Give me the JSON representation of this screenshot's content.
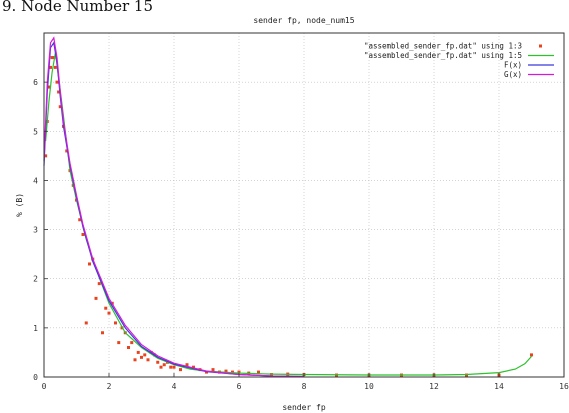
{
  "caption": "9. Node Number 15",
  "chart_data": {
    "type": "line",
    "title": "sender fp, node_num15",
    "xlabel": "sender fp",
    "ylabel": "% (B)",
    "xlim": [
      0,
      16
    ],
    "ylim": [
      0,
      7
    ],
    "xticks": [
      "0",
      "2",
      "4",
      "6",
      "8",
      "10",
      "12",
      "14",
      "16"
    ],
    "yticks": [
      "0",
      "1",
      "2",
      "3",
      "4",
      "5",
      "6"
    ],
    "grid": true,
    "legend_position": "top-right",
    "series": [
      {
        "name": "\"assembled_sender_fp.dat\" using 1:3",
        "kind": "points",
        "color": "#e8431e",
        "x": [
          0.05,
          0.1,
          0.15,
          0.2,
          0.25,
          0.3,
          0.35,
          0.4,
          0.45,
          0.5,
          0.6,
          0.7,
          0.8,
          0.9,
          1.0,
          1.1,
          1.2,
          1.3,
          1.4,
          1.5,
          1.6,
          1.7,
          1.8,
          1.9,
          2.0,
          2.1,
          2.2,
          2.3,
          2.4,
          2.5,
          2.6,
          2.7,
          2.8,
          2.9,
          3.0,
          3.1,
          3.2,
          3.3,
          3.4,
          3.5,
          3.6,
          3.7,
          3.8,
          3.9,
          4.0,
          4.2,
          4.4,
          4.6,
          4.8,
          5.0,
          5.2,
          5.4,
          5.6,
          5.8,
          6.0,
          6.3,
          6.6,
          7.0,
          7.5,
          8.0,
          9.0,
          10.0,
          11.0,
          12.0,
          13.0,
          14.0,
          15.0
        ],
        "y": [
          4.5,
          5.2,
          5.9,
          6.3,
          6.5,
          6.5,
          6.3,
          6.0,
          5.8,
          5.5,
          5.1,
          4.6,
          4.2,
          3.9,
          3.6,
          3.2,
          2.9,
          1.1,
          2.3,
          2.4,
          1.6,
          1.9,
          0.9,
          1.4,
          1.3,
          1.5,
          1.1,
          0.7,
          1.0,
          0.9,
          0.6,
          0.7,
          0.35,
          0.5,
          0.4,
          0.45,
          0.35,
          0.5,
          0.45,
          0.3,
          0.2,
          0.25,
          0.3,
          0.2,
          0.2,
          0.15,
          0.25,
          0.2,
          0.15,
          0.1,
          0.15,
          0.1,
          0.12,
          0.1,
          0.1,
          0.08,
          0.1,
          0.05,
          0.06,
          0.05,
          0.04,
          0.04,
          0.04,
          0.04,
          0.04,
          0.04,
          0.45
        ]
      },
      {
        "name": "\"assembled_sender_fp.dat\" using 1:5",
        "kind": "line",
        "color": "#2ec12e",
        "x": [
          0.05,
          0.15,
          0.25,
          0.35,
          0.45,
          0.6,
          0.8,
          1.0,
          1.3,
          1.6,
          2.0,
          2.5,
          3.0,
          3.5,
          4.0,
          4.5,
          5.0,
          6.0,
          7.0,
          8.0,
          10.0,
          12.0,
          13.0,
          14.0,
          14.5,
          14.8,
          15.0
        ],
        "y": [
          4.8,
          5.6,
          6.2,
          6.6,
          6.1,
          5.3,
          4.2,
          3.6,
          2.8,
          2.2,
          1.5,
          0.9,
          0.6,
          0.38,
          0.25,
          0.16,
          0.12,
          0.08,
          0.06,
          0.05,
          0.04,
          0.04,
          0.05,
          0.09,
          0.16,
          0.27,
          0.42
        ]
      },
      {
        "name": "F(x)",
        "kind": "line",
        "color": "#3a3adb",
        "x": [
          0.0,
          0.1,
          0.2,
          0.3,
          0.4,
          0.5,
          0.6,
          0.8,
          1.0,
          1.2,
          1.5,
          2.0,
          2.5,
          3.0,
          3.5,
          4.0,
          5.0,
          6.0,
          7.0,
          8.0
        ],
        "y": [
          4.3,
          5.8,
          6.7,
          6.8,
          6.4,
          5.7,
          5.1,
          4.3,
          3.65,
          3.05,
          2.35,
          1.55,
          1.0,
          0.62,
          0.4,
          0.26,
          0.11,
          0.05,
          0.02,
          0.01
        ]
      },
      {
        "name": "G(x)",
        "kind": "line",
        "color": "#d51ad5",
        "x": [
          0.0,
          0.1,
          0.2,
          0.3,
          0.4,
          0.5,
          0.6,
          0.8,
          1.0,
          1.2,
          1.5,
          2.0,
          2.5,
          3.0,
          3.5,
          4.0,
          5.0,
          6.0,
          7.0,
          8.0
        ],
        "y": [
          4.4,
          6.0,
          6.8,
          6.9,
          6.5,
          5.8,
          5.2,
          4.35,
          3.7,
          3.1,
          2.4,
          1.6,
          1.05,
          0.66,
          0.43,
          0.28,
          0.12,
          0.05,
          0.02,
          0.01
        ]
      }
    ]
  }
}
